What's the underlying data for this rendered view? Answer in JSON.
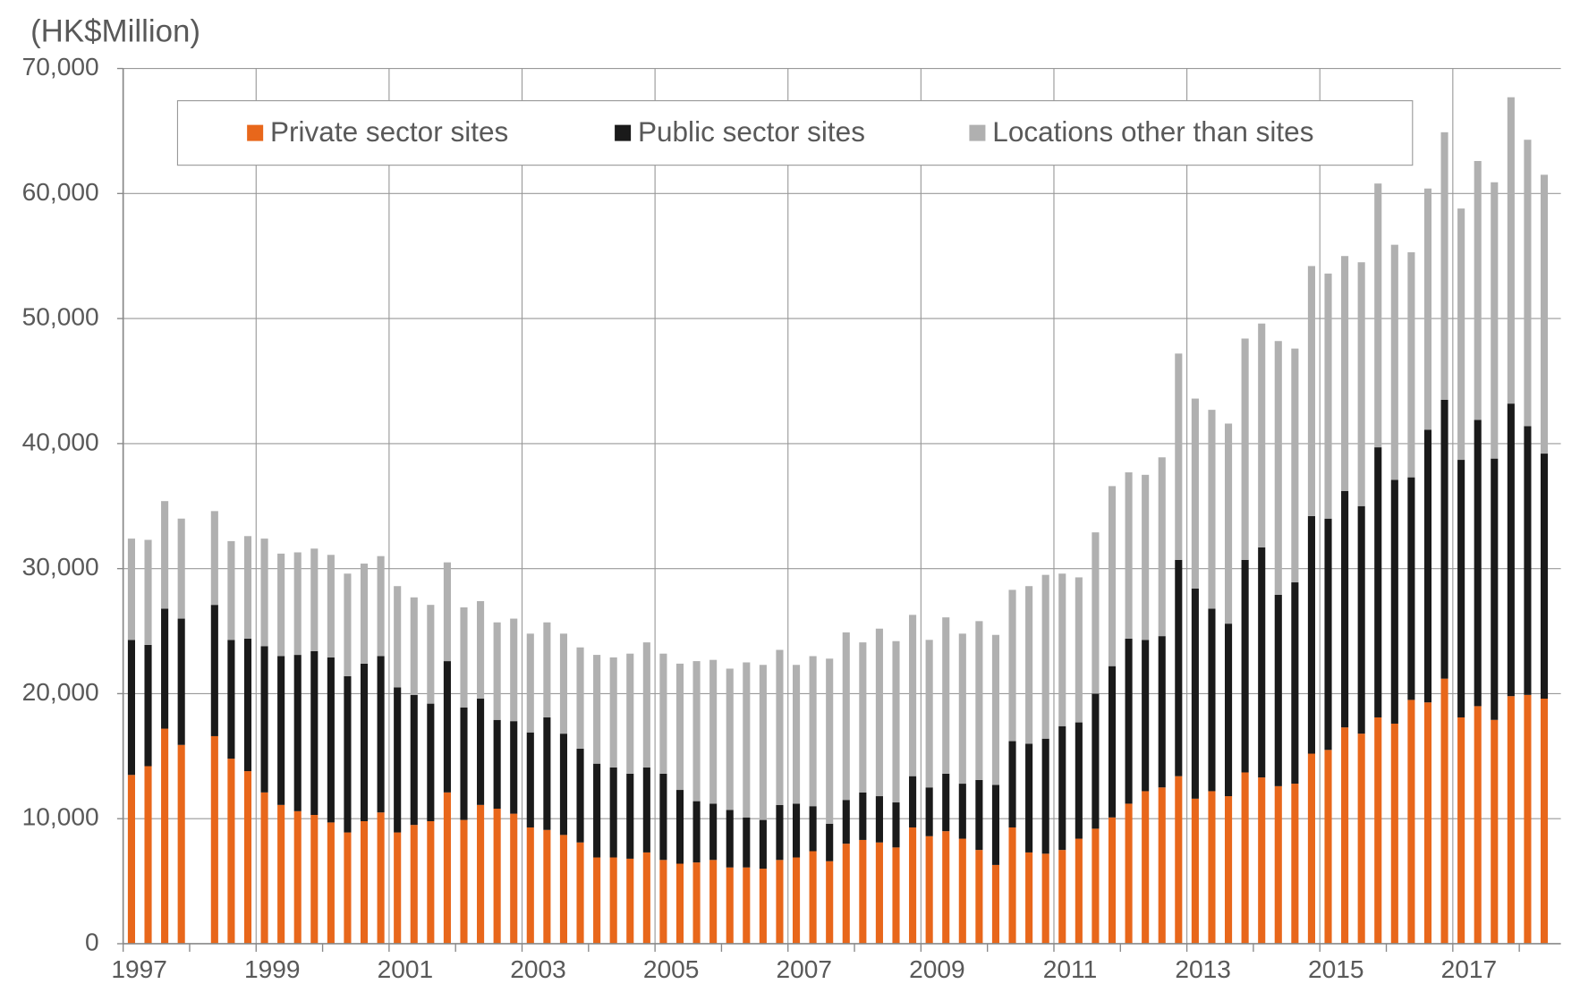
{
  "chart_data": {
    "type": "stacked_bar",
    "ylabel": "(HK$Million)",
    "categories": [
      "1997",
      null,
      null,
      null,
      null,
      null,
      null,
      null,
      "1999",
      null,
      null,
      null,
      null,
      null,
      null,
      null,
      "2001",
      null,
      null,
      null,
      null,
      null,
      null,
      null,
      "2003",
      null,
      null,
      null,
      null,
      null,
      null,
      null,
      "2005",
      null,
      null,
      null,
      null,
      null,
      null,
      null,
      "2007",
      null,
      null,
      null,
      null,
      null,
      null,
      null,
      "2009",
      null,
      null,
      null,
      null,
      null,
      null,
      null,
      "2011",
      null,
      null,
      null,
      null,
      null,
      null,
      null,
      "2013",
      null,
      null,
      null,
      null,
      null,
      null,
      null,
      "2015",
      null,
      null,
      null,
      null,
      null,
      null,
      null,
      "2017",
      null,
      null,
      null,
      null,
      null
    ],
    "series": [
      {
        "name": "Private sector sites",
        "color": "#e8671b",
        "values": [
          13500,
          14200,
          17200,
          15900,
          null,
          16600,
          14800,
          13800,
          12100,
          11100,
          10600,
          10300,
          9700,
          8900,
          9800,
          10500,
          8900,
          9500,
          9800,
          12100,
          9900,
          11100,
          10800,
          10400,
          9300,
          9100,
          8700,
          8100,
          6900,
          6900,
          6800,
          7300,
          6700,
          6400,
          6500,
          6700,
          6100,
          6100,
          6000,
          6700,
          6900,
          7400,
          6600,
          8000,
          8300,
          8100,
          7700,
          9300,
          8600,
          9000,
          8400,
          7500,
          6300,
          9300,
          7300,
          7200,
          7500,
          8400,
          9200,
          10100,
          11200,
          12200,
          12500,
          13400,
          11600,
          12200,
          11800,
          13700,
          13300,
          12600,
          12800,
          15200,
          15500,
          17300,
          16800,
          18100,
          17600,
          19500,
          19300,
          21200,
          18100,
          19000,
          17900,
          19800,
          19900,
          19600
        ]
      },
      {
        "name": "Public sector sites",
        "color": "#1a1a1a",
        "values": [
          10800,
          9700,
          9600,
          10100,
          null,
          10500,
          9500,
          10600,
          11700,
          11900,
          12500,
          13100,
          13200,
          12500,
          12600,
          12500,
          11600,
          10400,
          9400,
          10500,
          9000,
          8500,
          7100,
          7400,
          7600,
          9000,
          8100,
          7500,
          7500,
          7200,
          6800,
          6800,
          6900,
          5900,
          4900,
          4500,
          4600,
          4000,
          3900,
          4400,
          4300,
          3600,
          3000,
          3500,
          3800,
          3700,
          3600,
          4100,
          3900,
          4600,
          4400,
          5600,
          6400,
          6900,
          8700,
          9200,
          9900,
          9300,
          10800,
          12100,
          13200,
          12100,
          12100,
          17300,
          16800,
          14600,
          13800,
          17000,
          18400,
          15300,
          16100,
          19000,
          18500,
          18900,
          18200,
          21600,
          19500,
          17800,
          21800,
          22300,
          20600,
          22900,
          20900,
          23400,
          21500,
          19600
        ]
      },
      {
        "name": "Locations other than sites",
        "color": "#b0b0b0",
        "values": [
          8100,
          8400,
          8600,
          8000,
          null,
          7500,
          7900,
          8200,
          8600,
          8200,
          8200,
          8200,
          8200,
          8200,
          8000,
          8000,
          8100,
          7800,
          7900,
          7900,
          8000,
          7800,
          7800,
          8200,
          7900,
          7600,
          8000,
          8100,
          8700,
          8800,
          9600,
          10000,
          9600,
          10100,
          11200,
          11500,
          11300,
          12400,
          12400,
          12400,
          11100,
          12000,
          13200,
          13400,
          12000,
          13400,
          12900,
          12900,
          11800,
          12500,
          12000,
          12700,
          12000,
          12100,
          12600,
          13100,
          12200,
          11600,
          12900,
          14400,
          13300,
          13200,
          14300,
          16500,
          15200,
          15900,
          16000,
          17700,
          17900,
          20300,
          18700,
          20000,
          19600,
          18800,
          19500,
          21100,
          18800,
          18000,
          19300,
          21400,
          20100,
          20700,
          22100,
          24500,
          22900,
          22300
        ]
      }
    ],
    "ylim": [
      0,
      70000
    ],
    "yticks": [
      0,
      {
        "value": 10000,
        "label": "10,000"
      },
      {
        "value": 20000,
        "label": "20,000"
      },
      {
        "value": 30000,
        "label": "30,000"
      },
      {
        "value": 40000,
        "label": "40,000"
      },
      {
        "value": 50000,
        "label": "50,000"
      },
      {
        "value": 60000,
        "label": "60,000"
      },
      {
        "value": 70000,
        "label": "70,000"
      }
    ],
    "grid": true
  }
}
